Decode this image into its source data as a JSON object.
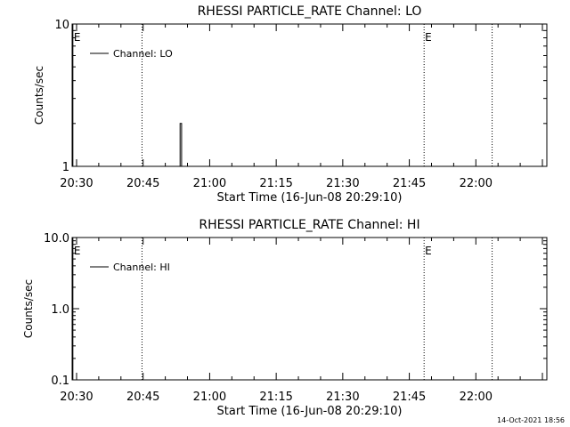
{
  "footer_timestamp": "14-Oct-2021 18:56",
  "colors": {
    "background": "#ffffff",
    "foreground": "#000000"
  },
  "chart_data": [
    {
      "type": "line",
      "title": "RHESSI PARTICLE_RATE Channel: LO",
      "xlabel": "Start Time (16-Jun-08 20:29:10)",
      "ylabel": "Counts/sec",
      "y_scale": "log",
      "ylim": [
        1,
        10
      ],
      "y_ticks": [
        {
          "v": 1,
          "label": "1"
        },
        {
          "v": 10,
          "label": "10"
        }
      ],
      "xlim": [
        "20:29",
        "22:16"
      ],
      "x_ticks": [
        "20:30",
        "20:45",
        "21:00",
        "21:15",
        "21:30",
        "21:45",
        "22:00"
      ],
      "legend": "Channel: LO",
      "legend_position": "top-left",
      "series": [
        {
          "name": "Channel: LO",
          "x": [
            "20:29:10",
            "20:53:00",
            "20:53:20",
            "20:53:20",
            "20:53:40",
            "20:53:40",
            "20:54:00",
            "22:16:00"
          ],
          "y": [
            1,
            1,
            1,
            2,
            2,
            1,
            1,
            1
          ]
        }
      ],
      "vertical_markers": [
        {
          "time": "20:29:10",
          "label": "E",
          "style": "solid"
        },
        {
          "time": "20:44:45",
          "label": "",
          "style": "dotted"
        },
        {
          "time": "21:48:20",
          "label": "E",
          "style": "dotted"
        },
        {
          "time": "22:03:40",
          "label": "",
          "style": "dotted"
        }
      ]
    },
    {
      "type": "line",
      "title": "RHESSI PARTICLE_RATE Channel: HI",
      "xlabel": "Start Time (16-Jun-08 20:29:10)",
      "ylabel": "Counts/sec",
      "y_scale": "log",
      "ylim": [
        0.1,
        10
      ],
      "y_ticks": [
        {
          "v": 0.1,
          "label": "0.1"
        },
        {
          "v": 1,
          "label": "1.0"
        },
        {
          "v": 10,
          "label": "10.0"
        }
      ],
      "xlim": [
        "20:29",
        "22:16"
      ],
      "x_ticks": [
        "20:30",
        "20:45",
        "21:00",
        "21:15",
        "21:30",
        "21:45",
        "22:00"
      ],
      "legend": "Channel: HI",
      "legend_position": "top-left",
      "series": [
        {
          "name": "Channel: HI",
          "x": [],
          "y": []
        }
      ],
      "vertical_markers": [
        {
          "time": "20:29:10",
          "label": "E",
          "style": "solid"
        },
        {
          "time": "20:44:45",
          "label": "",
          "style": "dotted"
        },
        {
          "time": "21:48:20",
          "label": "E",
          "style": "dotted"
        },
        {
          "time": "22:03:40",
          "label": "",
          "style": "dotted"
        }
      ]
    }
  ]
}
